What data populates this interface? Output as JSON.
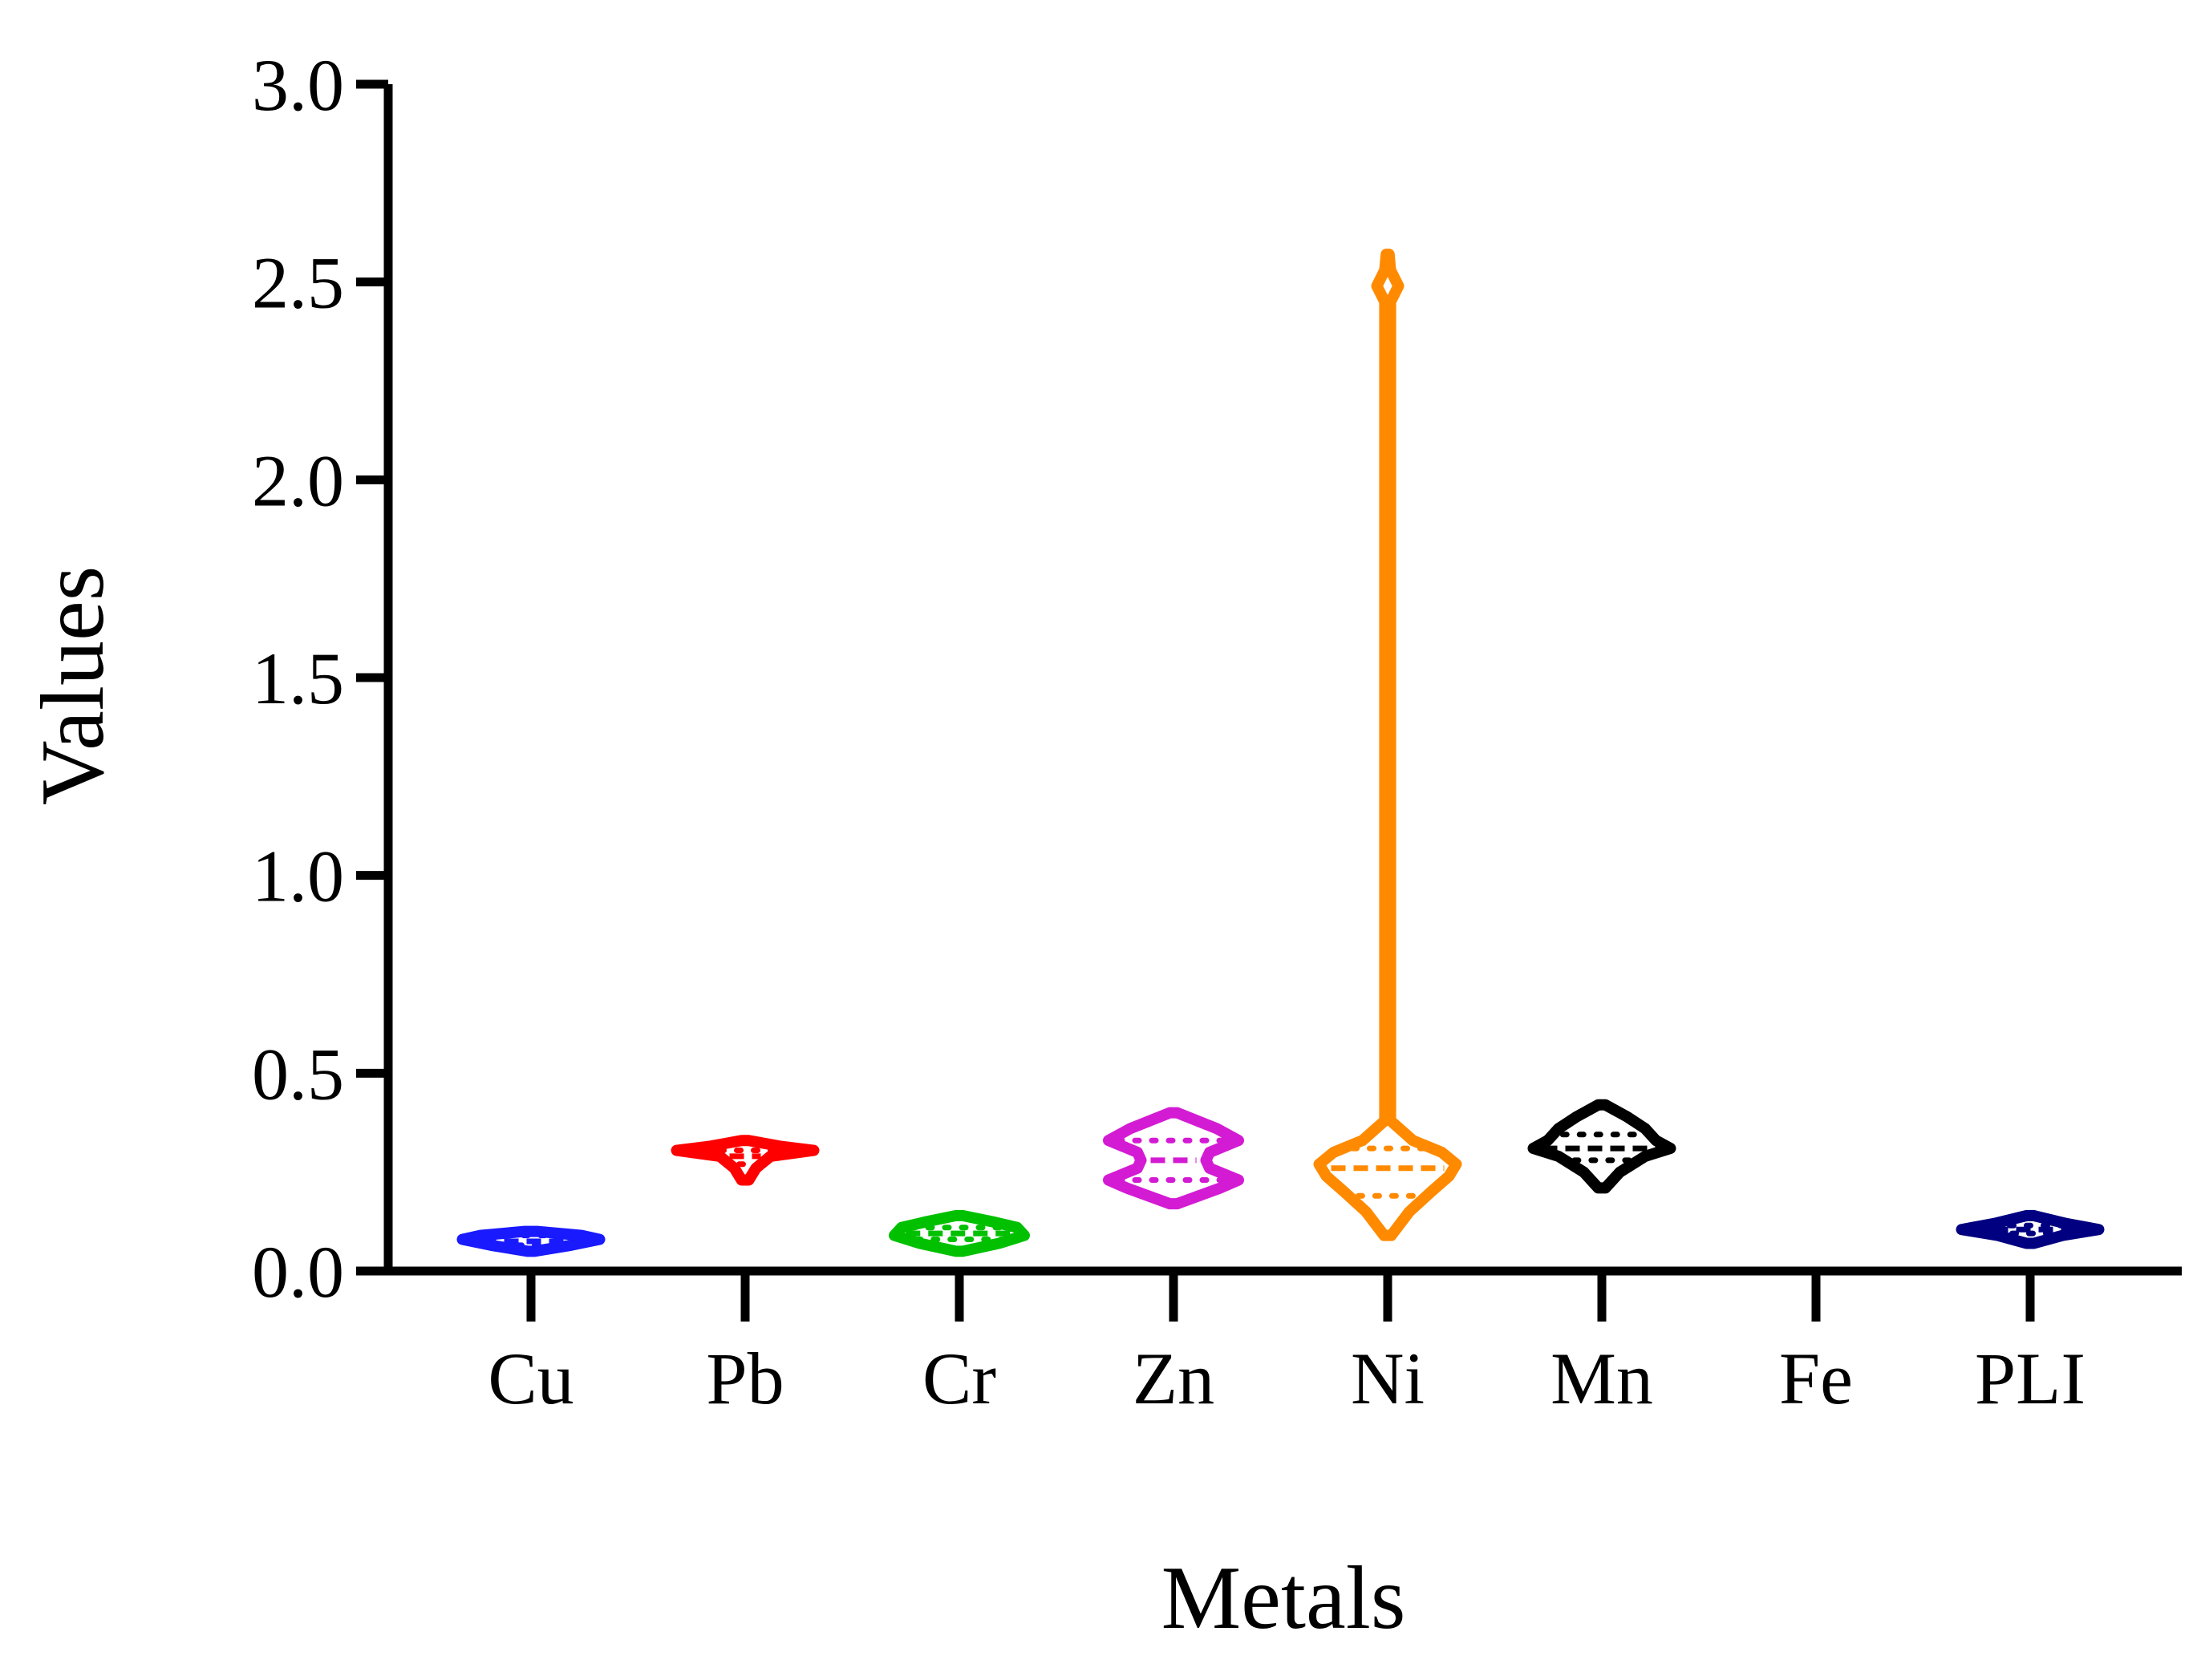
{
  "chart_data": {
    "type": "violin",
    "title": "",
    "xlabel": "Metals",
    "ylabel": "Values",
    "ylim": [
      0,
      3.0
    ],
    "yticks": [
      0.0,
      0.5,
      1.0,
      1.5,
      2.0,
      2.5,
      3.0
    ],
    "ytick_labels": [
      "0.0",
      "0.5",
      "1.0",
      "1.5",
      "2.0",
      "2.5",
      "3.0"
    ],
    "categories": [
      "Cu",
      "Pb",
      "Cr",
      "Zn",
      "Ni",
      "Mn",
      "Fe",
      "PLI"
    ],
    "grid": false,
    "legend": "none",
    "series": [
      {
        "category": "Cu",
        "color": "#1a1aff",
        "min": 0.05,
        "max": 0.1,
        "median": 0.075,
        "q1": 0.065,
        "q3": 0.09,
        "profile": [
          [
            0.05,
            0.05
          ],
          [
            0.065,
            0.55
          ],
          [
            0.08,
            0.95
          ],
          [
            0.09,
            0.7
          ],
          [
            0.1,
            0.1
          ]
        ]
      },
      {
        "category": "Pb",
        "color": "#ff0000",
        "min": 0.23,
        "max": 0.33,
        "median": 0.29,
        "q1": 0.27,
        "q3": 0.305,
        "profile": [
          [
            0.23,
            0.05
          ],
          [
            0.26,
            0.15
          ],
          [
            0.29,
            0.35
          ],
          [
            0.305,
            0.95
          ],
          [
            0.315,
            0.5
          ],
          [
            0.33,
            0.05
          ]
        ]
      },
      {
        "category": "Cr",
        "color": "#00c000",
        "min": 0.05,
        "max": 0.14,
        "median": 0.095,
        "q1": 0.08,
        "q3": 0.11,
        "profile": [
          [
            0.05,
            0.05
          ],
          [
            0.07,
            0.55
          ],
          [
            0.09,
            0.9
          ],
          [
            0.11,
            0.8
          ],
          [
            0.125,
            0.45
          ],
          [
            0.14,
            0.05
          ]
        ]
      },
      {
        "category": "Zn",
        "color": "#d41bd4",
        "min": 0.17,
        "max": 0.4,
        "median": 0.28,
        "q1": 0.23,
        "q3": 0.33,
        "profile": [
          [
            0.17,
            0.05
          ],
          [
            0.21,
            0.65
          ],
          [
            0.23,
            0.9
          ],
          [
            0.26,
            0.5
          ],
          [
            0.28,
            0.45
          ],
          [
            0.3,
            0.5
          ],
          [
            0.33,
            0.9
          ],
          [
            0.36,
            0.6
          ],
          [
            0.4,
            0.05
          ]
        ]
      },
      {
        "category": "Ni",
        "color": "#ff8a00",
        "min": 0.09,
        "max": 2.57,
        "median": 0.26,
        "q1": 0.19,
        "q3": 0.31,
        "profile": [
          [
            0.09,
            0.05
          ],
          [
            0.15,
            0.3
          ],
          [
            0.2,
            0.6
          ],
          [
            0.24,
            0.85
          ],
          [
            0.27,
            0.95
          ],
          [
            0.3,
            0.75
          ],
          [
            0.33,
            0.35
          ],
          [
            0.38,
            0.04
          ],
          [
            2.45,
            0.04
          ],
          [
            2.49,
            0.15
          ],
          [
            2.53,
            0.04
          ],
          [
            2.57,
            0.02
          ]
        ]
      },
      {
        "category": "Mn",
        "color": "#000000",
        "min": 0.21,
        "max": 0.42,
        "median": 0.31,
        "q1": 0.28,
        "q3": 0.345,
        "profile": [
          [
            0.21,
            0.05
          ],
          [
            0.25,
            0.25
          ],
          [
            0.29,
            0.6
          ],
          [
            0.31,
            0.95
          ],
          [
            0.33,
            0.75
          ],
          [
            0.36,
            0.6
          ],
          [
            0.39,
            0.35
          ],
          [
            0.42,
            0.05
          ]
        ]
      },
      {
        "category": "Fe",
        "color": "#000000",
        "min": null,
        "max": null,
        "median": null,
        "q1": null,
        "q3": null,
        "profile": []
      },
      {
        "category": "PLI",
        "color": "#000080",
        "min": 0.07,
        "max": 0.14,
        "median": 0.105,
        "q1": 0.095,
        "q3": 0.115,
        "profile": [
          [
            0.07,
            0.05
          ],
          [
            0.09,
            0.45
          ],
          [
            0.105,
            0.95
          ],
          [
            0.12,
            0.5
          ],
          [
            0.14,
            0.05
          ]
        ]
      }
    ]
  }
}
